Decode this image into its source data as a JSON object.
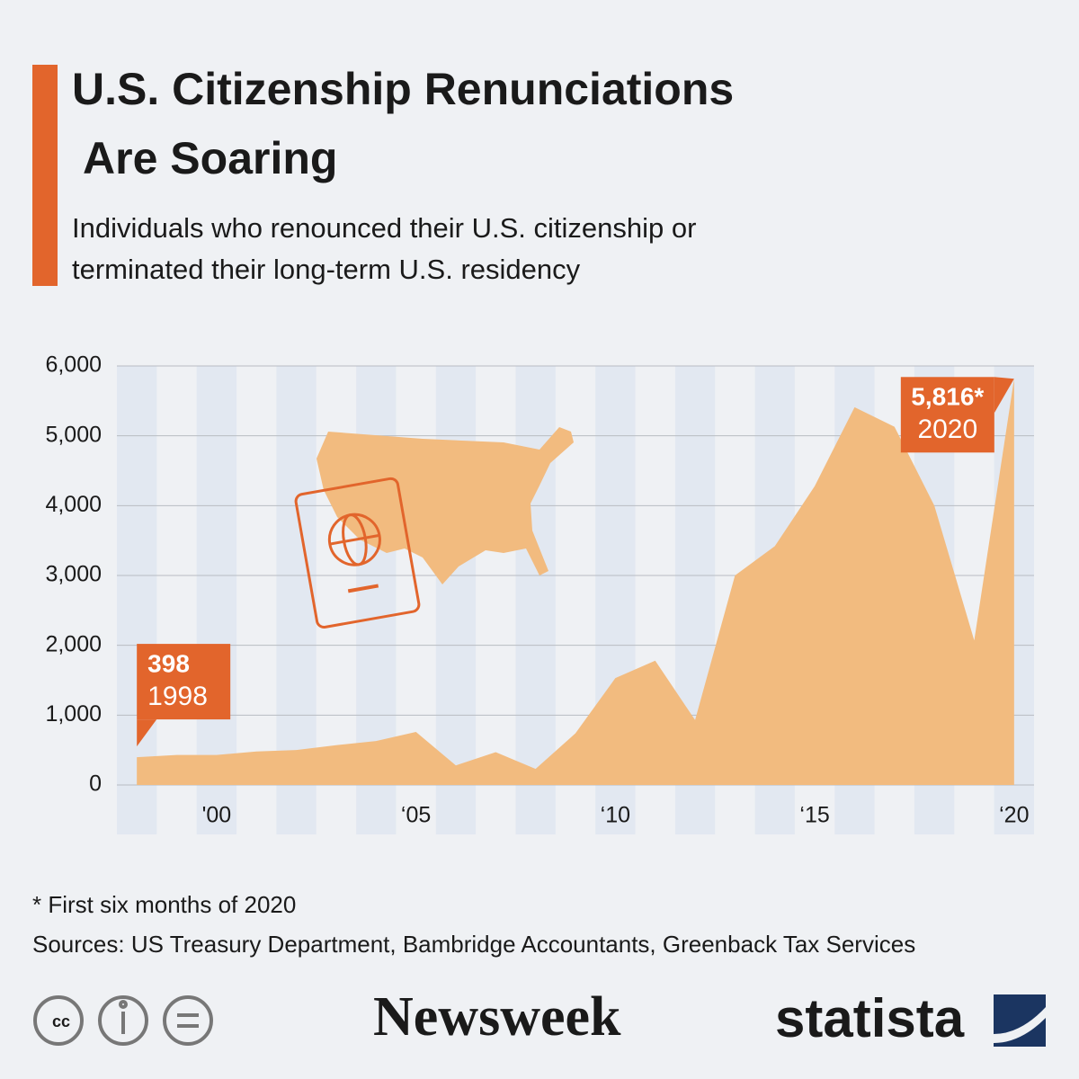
{
  "chart_data": {
    "type": "area",
    "title": "U.S. Citizenship Renunciations Are Soaring",
    "subtitle_lines": [
      "Individuals who renounced their U.S. citizenship or",
      "terminated their long-term U.S. residency"
    ],
    "x": [
      1998,
      1999,
      2000,
      2001,
      2002,
      2003,
      2004,
      2005,
      2006,
      2007,
      2008,
      2009,
      2010,
      2011,
      2012,
      2013,
      2014,
      2015,
      2016,
      2017,
      2018,
      2019,
      2020
    ],
    "values": [
      398,
      430,
      430,
      480,
      500,
      570,
      630,
      760,
      280,
      470,
      230,
      740,
      1530,
      1780,
      930,
      3000,
      3420,
      4280,
      5410,
      5130,
      4000,
      2070,
      5816
    ],
    "value_labels": [
      "398",
      null,
      null,
      null,
      null,
      null,
      null,
      null,
      null,
      null,
      null,
      null,
      null,
      null,
      null,
      null,
      null,
      null,
      null,
      null,
      null,
      null,
      "5,816*"
    ],
    "color": "#f2bb7f",
    "label_color": "#e2652c",
    "xlim": [
      1997.5,
      2020.5
    ],
    "xticks": [
      {
        "value": 2000,
        "label": "'00"
      },
      {
        "value": 2005,
        "label": "‘05"
      },
      {
        "value": 2010,
        "label": "‘10"
      },
      {
        "value": 2015,
        "label": "‘15"
      },
      {
        "value": 2020,
        "label": "‘20"
      }
    ],
    "ylim": [
      0,
      6000
    ],
    "yticks": [
      0,
      {
        "value": 1000,
        "label": "1,000"
      },
      {
        "value": 2000,
        "label": "2,000"
      },
      {
        "value": 3000,
        "label": "3,000"
      },
      {
        "value": 4000,
        "label": "4,000"
      },
      {
        "value": 5000,
        "label": "5,000"
      },
      {
        "value": 6000,
        "label": "6,000"
      }
    ],
    "grid": true,
    "footnote": "* First six months of 2020",
    "source": "Sources: US Treasury Department, Bambridge Accountants, Greenback Tax Services",
    "brands": [
      "Newsweek",
      "statista"
    ]
  }
}
